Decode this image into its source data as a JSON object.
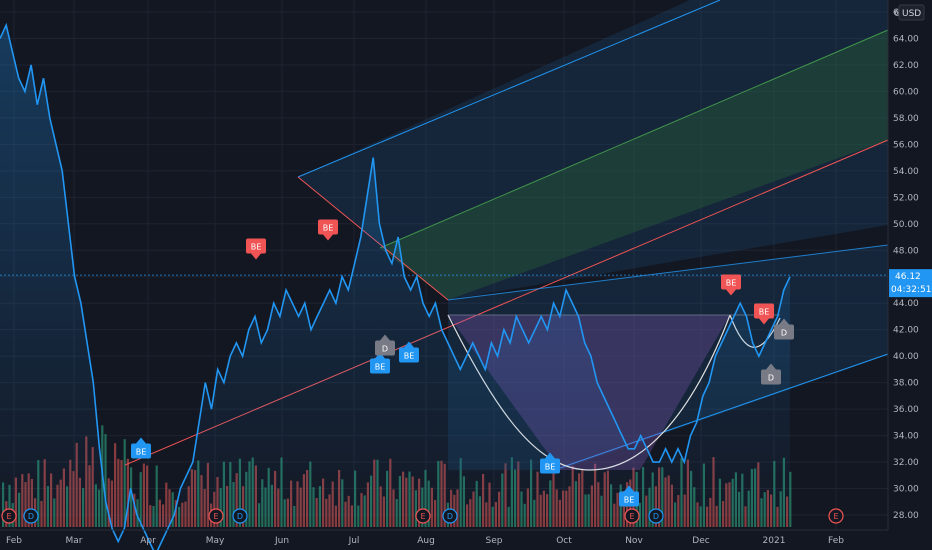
{
  "chart_data": {
    "type": "line",
    "currency": "USD",
    "last_price": "46.12",
    "countdown": "04:32:51",
    "ylim": [
      27,
      68
    ],
    "y_ticks": [
      28,
      30,
      32,
      34,
      36,
      38,
      40,
      42,
      44,
      46,
      48,
      50,
      52,
      54,
      56,
      58,
      60,
      62,
      64,
      66
    ],
    "y_tick_labels": [
      "28.00",
      "30.00",
      "32.00",
      "34.00",
      "36.00",
      "38.00",
      "40.00",
      "42.00",
      "44.00",
      "46.00",
      "48.00",
      "50.00",
      "52.00",
      "54.00",
      "56.00",
      "58.00",
      "60.00",
      "62.00",
      "64.00",
      "66.00"
    ],
    "top_partial_label": "6",
    "x_labels": [
      "Feb",
      "Mar",
      "Apr",
      "May",
      "Jun",
      "Jul",
      "Aug",
      "Sep",
      "Oct",
      "Nov",
      "Dec",
      "2021",
      "Feb"
    ],
    "series": [
      {
        "values": [
          64,
          65,
          63,
          61,
          60,
          62,
          59,
          61,
          58,
          56,
          54,
          50,
          46,
          44,
          41,
          38,
          33,
          29,
          27,
          26,
          27,
          30,
          28,
          27,
          26,
          25,
          26,
          27,
          28,
          30,
          31,
          32,
          35,
          38,
          36,
          39,
          38,
          40,
          41,
          40,
          42,
          43,
          41,
          42,
          44,
          43,
          45,
          44,
          43,
          44,
          42,
          43,
          44,
          45,
          44,
          46,
          45,
          47,
          49,
          52,
          55,
          50,
          48,
          47,
          49,
          46,
          45,
          46,
          44,
          43,
          44,
          42,
          41,
          40,
          39,
          40,
          41,
          40,
          39,
          41,
          40,
          42,
          41,
          43,
          42,
          41,
          42,
          43,
          42,
          44,
          43,
          45,
          44,
          43,
          41,
          40,
          38,
          37,
          36,
          35,
          34,
          33,
          33,
          34,
          33,
          32,
          32,
          33,
          32,
          33,
          32,
          34,
          35,
          37,
          38,
          40,
          41,
          42,
          43,
          44,
          43,
          41,
          40,
          41,
          42,
          43,
          45,
          46
        ]
      }
    ],
    "annotations": {
      "earnings_flags": [
        "E",
        "E",
        "E",
        "E",
        "E"
      ],
      "dividend_flags": [
        "D",
        "D",
        "D",
        "D"
      ],
      "event_labels": {
        "blue": [
          "BE",
          "BE",
          "BE",
          "BE",
          "BE"
        ],
        "red": [
          "BE",
          "BE",
          "BE",
          "BE"
        ],
        "grey": [
          "D",
          "D",
          "D"
        ]
      }
    }
  }
}
